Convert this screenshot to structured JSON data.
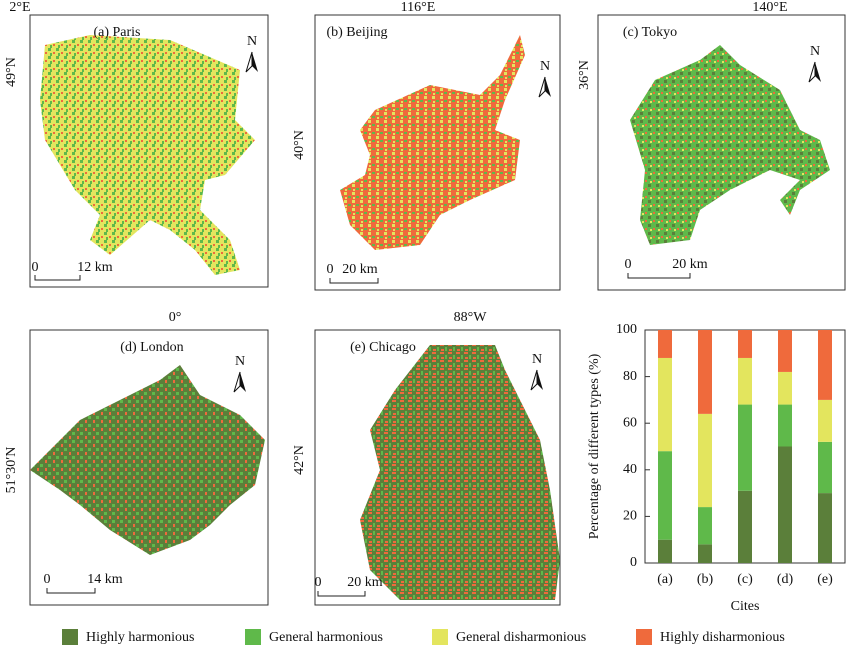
{
  "panels": [
    {
      "label": "(a) Paris",
      "lon": "2°E",
      "lat": "49°N",
      "scale_zero": "0",
      "scale_dist": "12 km"
    },
    {
      "label": "(b) Beijing",
      "lon": "116°E",
      "lat": "40°N",
      "scale_zero": "0",
      "scale_dist": "20 km"
    },
    {
      "label": "(c) Tokyo",
      "lon": "140°E",
      "lat": "36°N",
      "scale_zero": "0",
      "scale_dist": "20 km"
    },
    {
      "label": "(d) London",
      "lon": "0°",
      "lat": "51°30′N",
      "scale_zero": "0",
      "scale_dist": "14 km"
    },
    {
      "label": "(e) Chicago",
      "lon": "88°W",
      "lat": "42°N",
      "scale_zero": "0",
      "scale_dist": "20 km"
    }
  ],
  "north": "N",
  "chart_data": {
    "type": "stacked-bar",
    "y_label": "Percentage of different types (%)",
    "x_label": "Cites",
    "categories": [
      "(a)",
      "(b)",
      "(c)",
      "(d)",
      "(e)"
    ],
    "series": [
      {
        "name": "Highly harmonious",
        "color": "#5b7f3a",
        "values": [
          10,
          8,
          31,
          50,
          30
        ]
      },
      {
        "name": "General harmonious",
        "color": "#5fb94a",
        "values": [
          38,
          16,
          37,
          18,
          22
        ]
      },
      {
        "name": "General disharmonious",
        "color": "#e3e55e",
        "values": [
          40,
          40,
          20,
          14,
          18
        ]
      },
      {
        "name": "Highly disharmonious",
        "color": "#ef6a3c",
        "values": [
          12,
          36,
          12,
          18,
          30
        ]
      }
    ],
    "ylim": [
      0,
      100
    ],
    "yticks": [
      0,
      20,
      40,
      60,
      80,
      100
    ]
  }
}
